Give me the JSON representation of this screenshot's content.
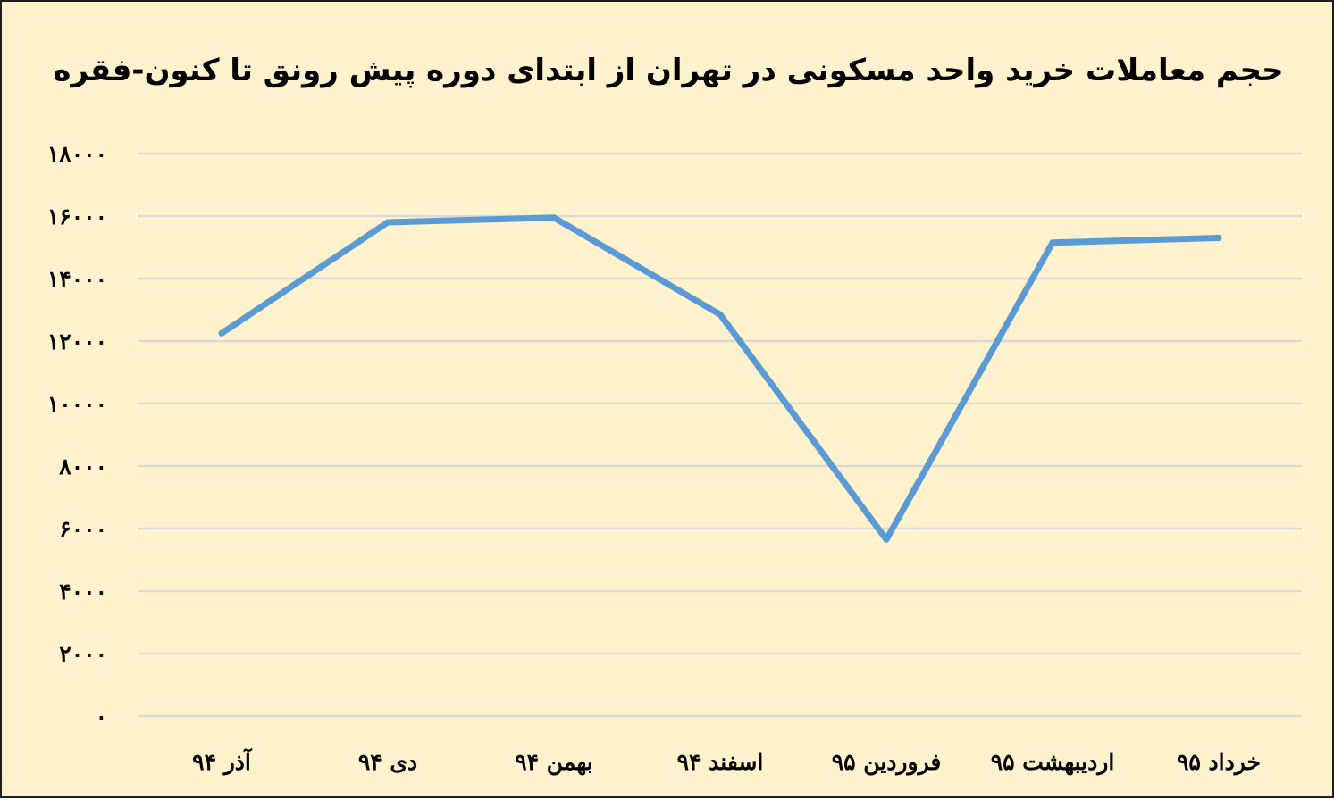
{
  "chart_data": {
    "type": "line",
    "title": "حجم معاملات خرید واحد مسکونی در تهران از ابتدای دوره پیش رونق تا کنون-فقره",
    "xlabel": "",
    "ylabel": "",
    "categories": [
      "آذر ۹۴",
      "دی ۹۴",
      "بهمن ۹۴",
      "اسفند ۹۴",
      "فروردین ۹۵",
      "اردیبهشت ۹۵",
      "خرداد ۹۵"
    ],
    "y_ticks": [
      0,
      2000,
      4000,
      6000,
      8000,
      10000,
      12000,
      14000,
      16000,
      18000
    ],
    "y_tick_labels": [
      "۰",
      "۲۰۰۰",
      "۴۰۰۰",
      "۶۰۰۰",
      "۸۰۰۰",
      "۱۰۰۰۰",
      "۱۲۰۰۰",
      "۱۴۰۰۰",
      "۱۶۰۰۰",
      "۱۸۰۰۰"
    ],
    "ylim": [
      0,
      18000
    ],
    "grid": true,
    "legend": "none",
    "series": [
      {
        "values": [
          12250,
          15800,
          15950,
          12850,
          5650,
          15150,
          15300
        ],
        "color": "#5b9bd5"
      }
    ]
  },
  "colors": {
    "background": "#fff2cc",
    "gridline": "#d9d9d9",
    "line": "#5b9bd5"
  }
}
